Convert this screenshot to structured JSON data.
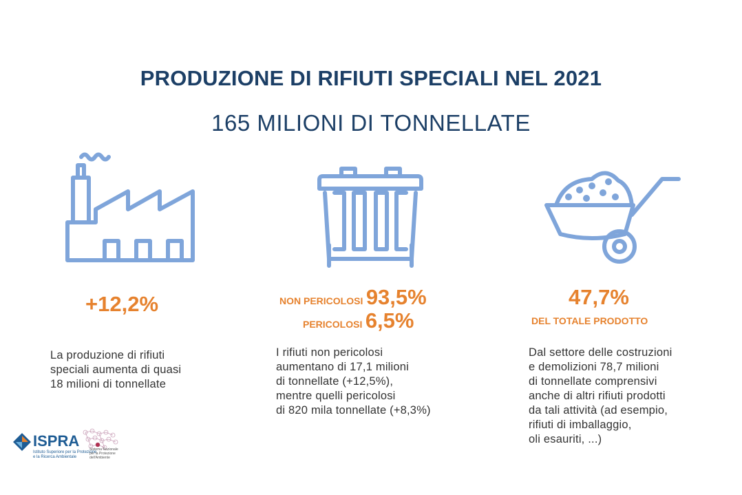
{
  "header": {
    "title": "PRODUZIONE DI RIFIUTI SPECIALI NEL 2021",
    "subtitle": "165 MILIONI DI TONNELLATE"
  },
  "colors": {
    "title": "#1c3f66",
    "icon": "#7fa5da",
    "accent": "#e6822e",
    "text": "#333333"
  },
  "columns": [
    {
      "icon": "factory-icon",
      "stat": "+12,2%",
      "description": [
        "La produzione di rifiuti",
        "speciali aumenta di quasi",
        "18 milioni di tonnellate"
      ]
    },
    {
      "icon": "waste-container-icon",
      "stats": [
        {
          "label": "NON PERICOLOSI",
          "value": "93,5%"
        },
        {
          "label": "PERICOLOSI",
          "value": "6,5%"
        }
      ],
      "description": [
        "I rifiuti non pericolosi",
        "aumentano di 17,1 milioni",
        "di tonnellate (+12,5%),",
        "mentre quelli pericolosi",
        "di 820 mila tonnellate (+8,3%)"
      ]
    },
    {
      "icon": "wheelbarrow-icon",
      "stat": "47,7%",
      "stat_sub": "DEL TOTALE PRODOTTO",
      "description": [
        "Dal settore delle costruzioni",
        "e demolizioni 78,7 milioni",
        "di tonnellate comprensivi",
        "anche di altri rifiuti prodotti",
        "da tali attività (ad esempio,",
        "rifiuti di imballaggio,",
        "oli esauriti, ...)"
      ]
    }
  ],
  "footer": {
    "logo1": {
      "name": "ISPRA",
      "subtitle": [
        "Istituto Superiore per la Protezione",
        "e la Ricerca Ambientale"
      ]
    },
    "logo2": {
      "subtitle": [
        "Sistema Nazionale",
        "per la Protezione",
        "dell'Ambiente"
      ]
    }
  }
}
